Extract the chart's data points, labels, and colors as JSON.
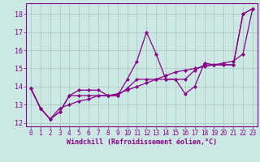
{
  "background_color": "#cce8e4",
  "grid_color": "#b0c8c4",
  "line_color": "#880088",
  "marker": "D",
  "marker_size": 2.0,
  "line_width": 0.9,
  "xlim": [
    -0.5,
    23.5
  ],
  "ylim": [
    11.8,
    18.6
  ],
  "yticks": [
    12,
    13,
    14,
    15,
    16,
    17,
    18
  ],
  "xticks": [
    0,
    1,
    2,
    3,
    4,
    5,
    6,
    7,
    8,
    9,
    10,
    11,
    12,
    13,
    14,
    15,
    16,
    17,
    18,
    19,
    20,
    21,
    22,
    23
  ],
  "xlabel": "Windchill (Refroidissement éolien,°C)",
  "series1_x": [
    0,
    1,
    2,
    3,
    4,
    5,
    6,
    7,
    8,
    9,
    10,
    11,
    12,
    13,
    14,
    15,
    16,
    17,
    18,
    19,
    20,
    21,
    22,
    23
  ],
  "series1_y": [
    13.9,
    12.8,
    12.2,
    12.6,
    13.5,
    13.8,
    13.8,
    13.8,
    13.5,
    13.5,
    14.4,
    15.4,
    17.0,
    15.8,
    14.4,
    14.4,
    13.6,
    14.0,
    15.3,
    15.2,
    15.2,
    15.2,
    18.0,
    18.3
  ],
  "series2_x": [
    0,
    1,
    2,
    3,
    4,
    5,
    6,
    7,
    8,
    9,
    10,
    11,
    12,
    13,
    14,
    15,
    16,
    17,
    18,
    19,
    20,
    21,
    22,
    23
  ],
  "series2_y": [
    13.9,
    12.8,
    12.2,
    12.6,
    13.5,
    13.5,
    13.5,
    13.5,
    13.5,
    13.5,
    13.9,
    14.4,
    14.4,
    14.4,
    14.4,
    14.4,
    14.4,
    14.9,
    15.2,
    15.2,
    15.2,
    15.2,
    18.0,
    18.3
  ],
  "series3_x": [
    0,
    1,
    2,
    3,
    4,
    5,
    6,
    7,
    8,
    9,
    10,
    11,
    12,
    13,
    14,
    15,
    16,
    17,
    18,
    19,
    20,
    21,
    22,
    23
  ],
  "series3_y": [
    13.9,
    12.8,
    12.2,
    12.8,
    13.0,
    13.2,
    13.3,
    13.5,
    13.5,
    13.6,
    13.8,
    14.0,
    14.2,
    14.4,
    14.6,
    14.8,
    14.9,
    15.0,
    15.1,
    15.2,
    15.3,
    15.4,
    15.8,
    18.3
  ],
  "tick_fontsize": 5.5,
  "xlabel_fontsize": 6.0
}
